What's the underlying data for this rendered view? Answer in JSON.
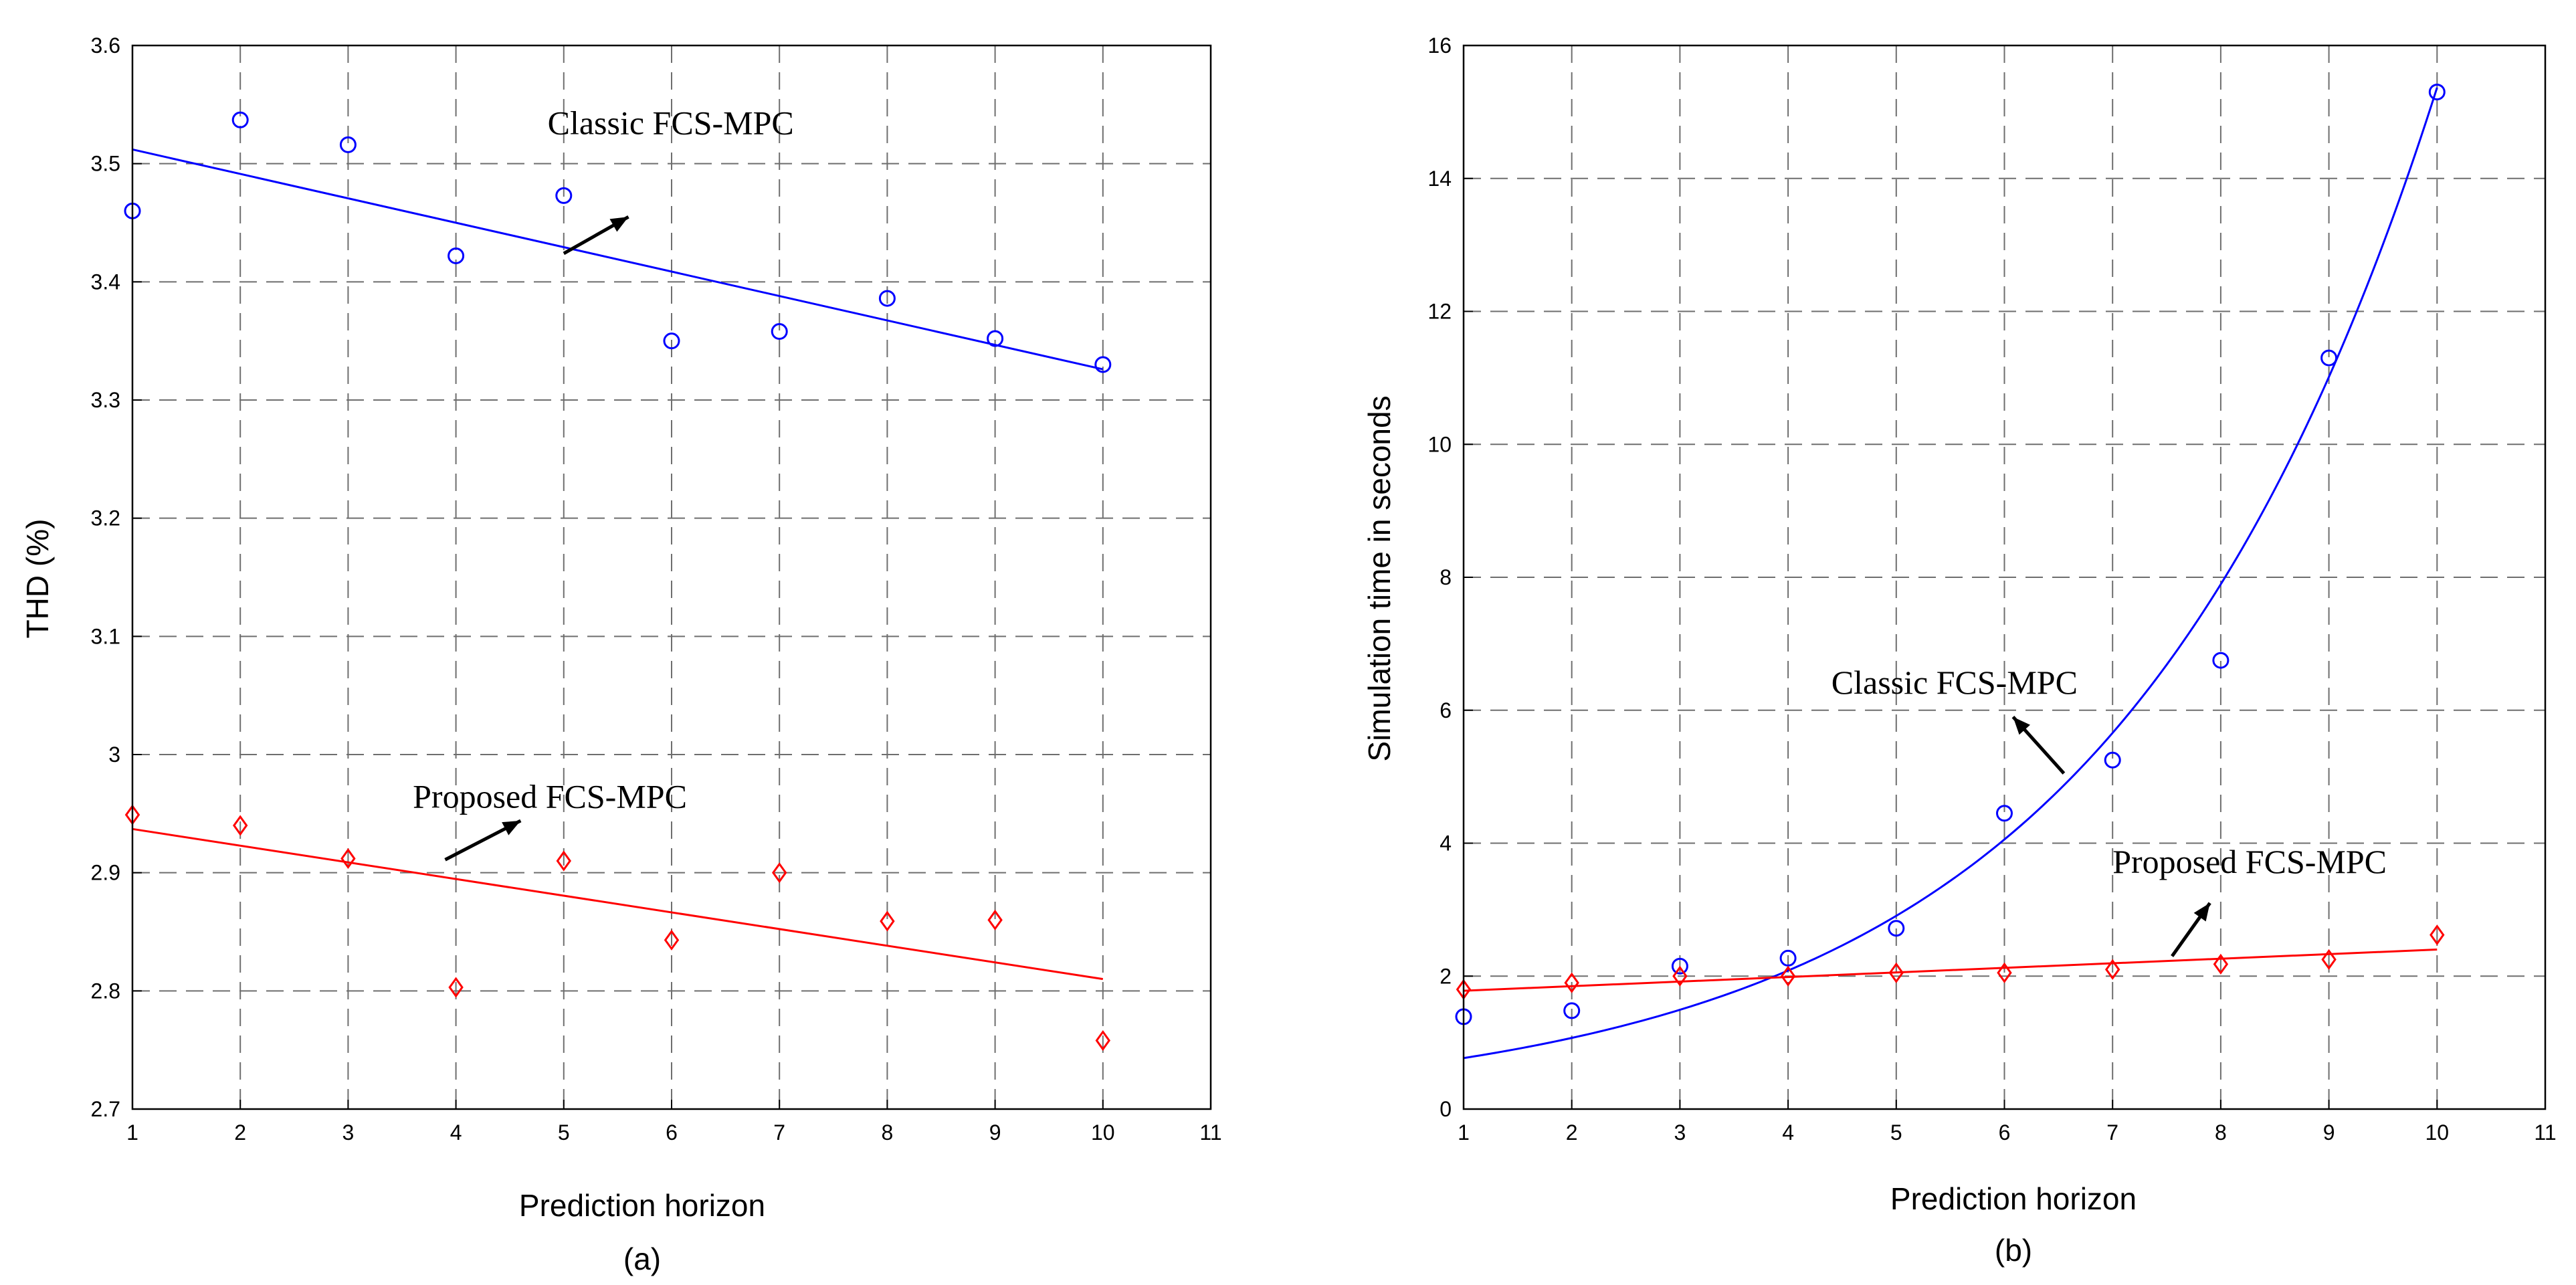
{
  "chart_data": [
    {
      "type": "scatter",
      "panel_label": "(a)",
      "xlabel": "Prediction horizon",
      "ylabel": "THD (%)",
      "xlim": [
        1,
        11
      ],
      "ylim": [
        2.7,
        3.6
      ],
      "xticks": [
        "1",
        "2",
        "3",
        "4",
        "5",
        "6",
        "7",
        "8",
        "9",
        "10",
        "11"
      ],
      "yticks": [
        "2.7",
        "2.8",
        "2.9",
        "3",
        "3.1",
        "3.2",
        "3.3",
        "3.4",
        "3.5",
        "3.6"
      ],
      "grid": true,
      "series": [
        {
          "name": "Classic FCS-MPC",
          "color": "#0000ff",
          "marker": "circle",
          "x": [
            1,
            2,
            3,
            4,
            5,
            6,
            7,
            8,
            9,
            10
          ],
          "values": [
            3.46,
            3.537,
            3.516,
            3.422,
            3.473,
            3.35,
            3.358,
            3.386,
            3.352,
            3.33
          ],
          "fit": {
            "kind": "linear",
            "x": [
              1,
              10
            ],
            "y": [
              3.512,
              3.326
            ]
          }
        },
        {
          "name": "Proposed FCS-MPC",
          "color": "#ff0000",
          "marker": "diamond",
          "x": [
            1,
            2,
            3,
            4,
            5,
            6,
            7,
            8,
            9,
            10
          ],
          "values": [
            2.949,
            2.94,
            2.912,
            2.803,
            2.91,
            2.843,
            2.9,
            2.859,
            2.86,
            2.758
          ],
          "fit": {
            "kind": "linear",
            "x": [
              1,
              10
            ],
            "y": [
              2.937,
              2.81
            ]
          }
        }
      ],
      "annotations": [
        {
          "text": "Classic FCS-MPC",
          "text_at": [
            4.85,
            3.525
          ],
          "arrow_from": [
            5.0,
            3.424
          ],
          "arrow_to": [
            5.6,
            3.455
          ]
        },
        {
          "text": "Proposed FCS-MPC",
          "text_at": [
            3.6,
            2.955
          ],
          "arrow_from": [
            3.9,
            2.911
          ],
          "arrow_to": [
            4.6,
            2.944
          ]
        }
      ]
    },
    {
      "type": "scatter",
      "panel_label": "(b)",
      "xlabel": "Prediction horizon",
      "ylabel": "Simulation time in seconds",
      "xlim": [
        1,
        11
      ],
      "ylim": [
        0,
        16
      ],
      "xticks": [
        "1",
        "2",
        "3",
        "4",
        "5",
        "6",
        "7",
        "8",
        "9",
        "10",
        "11"
      ],
      "yticks": [
        "0",
        "2",
        "4",
        "6",
        "8",
        "10",
        "12",
        "14",
        "16"
      ],
      "grid": true,
      "series": [
        {
          "name": "Classic FCS-MPC",
          "color": "#0000ff",
          "marker": "circle",
          "x": [
            1,
            2,
            3,
            4,
            5,
            6,
            7,
            8,
            9,
            10
          ],
          "values": [
            1.39,
            1.48,
            2.15,
            2.27,
            2.72,
            4.45,
            5.25,
            6.75,
            11.3,
            15.3
          ],
          "fit": {
            "kind": "exponential",
            "a": 0.55,
            "b": 0.333
          }
        },
        {
          "name": "Proposed FCS-MPC",
          "color": "#ff0000",
          "marker": "diamond",
          "x": [
            1,
            2,
            3,
            4,
            5,
            6,
            7,
            8,
            9,
            10
          ],
          "values": [
            1.8,
            1.9,
            2.0,
            2.0,
            2.05,
            2.05,
            2.1,
            2.18,
            2.25,
            2.62
          ],
          "fit": {
            "kind": "linear",
            "x": [
              1,
              10
            ],
            "y": [
              1.78,
              2.4
            ]
          }
        }
      ],
      "annotations": [
        {
          "text": "Classic FCS-MPC",
          "text_at": [
            4.4,
            6.25
          ],
          "arrow_from": [
            6.55,
            5.05
          ],
          "arrow_to": [
            6.08,
            5.9
          ]
        },
        {
          "text": "Proposed FCS-MPC",
          "text_at": [
            7.0,
            3.55
          ],
          "arrow_from": [
            7.55,
            2.3
          ],
          "arrow_to": [
            7.9,
            3.1
          ]
        }
      ]
    }
  ]
}
